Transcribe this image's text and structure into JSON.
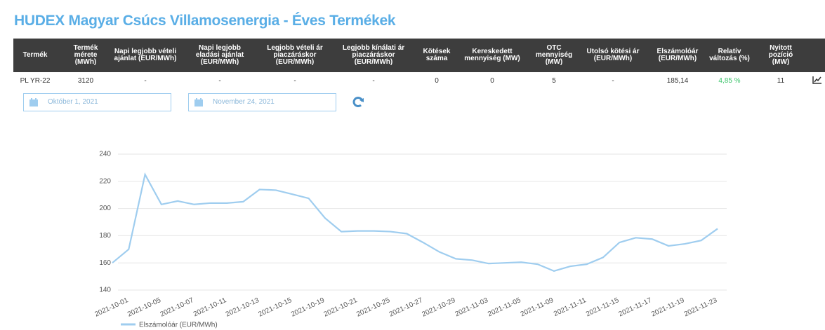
{
  "header": {
    "title": "HUDEX Magyar Csúcs Villamosenergia - Éves Termékek"
  },
  "table": {
    "columns": [
      "Termék",
      "Termék mérete (MWh)",
      "Napi legjobb vételi ajánlat (EUR/MWh)",
      "Napi legjobb eladási ajánlat (EUR/MWh)",
      "Legjobb vételi ár piaczáráskor (EUR/MWh)",
      "Legjobb kínálati ár piaczáráskor (EUR/MWh)",
      "Kötések száma",
      "Kereskedett mennyiség (MW)",
      "OTC mennyiség (MW)",
      "Utolsó kötési ár (EUR/MWh)",
      "Elszámolóár (EUR/MWh)",
      "Relatív változás (%)",
      "Nyitott pozíció (MW)"
    ],
    "rows": [
      [
        "PL YR-22",
        "3120",
        "-",
        "-",
        "-",
        "-",
        "0",
        "0",
        "5",
        "-",
        "185,14",
        "4,85 %",
        "11"
      ]
    ]
  },
  "filters": {
    "start_date": "Október 1, 2021",
    "end_date": "November 24, 2021"
  },
  "chart_data": {
    "type": "line",
    "categories": [
      "2021-10-01",
      null,
      "2021-10-05",
      null,
      "2021-10-07",
      null,
      "2021-10-11",
      null,
      "2021-10-13",
      null,
      "2021-10-15",
      null,
      "2021-10-19",
      null,
      "2021-10-21",
      null,
      "2021-10-25",
      null,
      "2021-10-27",
      null,
      "2021-10-29",
      null,
      "2021-11-03",
      null,
      "2021-11-05",
      null,
      "2021-11-09",
      null,
      "2021-11-11",
      null,
      "2021-11-15",
      null,
      "2021-11-17",
      null,
      "2021-11-19",
      null,
      "2021-11-23",
      null
    ],
    "series": [
      {
        "name": "Elszámolóár (EUR/MWh)",
        "color": "#9fcdef",
        "values": [
          160,
          170,
          225,
          203,
          205.5,
          203,
          204,
          204,
          205,
          214,
          213.5,
          210.5,
          207.5,
          193,
          183,
          183.5,
          183.5,
          183,
          181.5,
          175,
          168,
          163,
          162,
          159.5,
          160,
          160.5,
          159,
          154,
          157.5,
          159,
          164,
          175,
          178.5,
          177.5,
          172.5,
          174,
          176.5,
          185.14
        ]
      }
    ],
    "ylim": [
      140,
      240
    ],
    "yticks": [
      140,
      160,
      180,
      200,
      220,
      240
    ],
    "grid": true,
    "legend": "bottom-left"
  }
}
